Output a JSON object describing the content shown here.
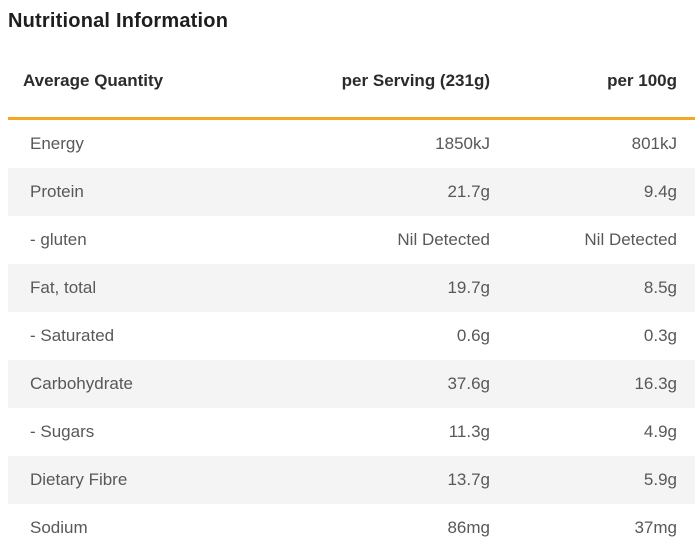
{
  "title": "Nutritional Information",
  "colors": {
    "accent": "#F5A623",
    "stripe": "#F4F4F4",
    "title_text": "#1E1E1E",
    "header_text": "#2B2B2B",
    "body_text": "#57585A"
  },
  "table": {
    "columns": [
      "Average Quantity",
      "per Serving (231g)",
      "per 100g"
    ],
    "rows": [
      {
        "label": "Energy",
        "per_serving": "1850kJ",
        "per_100g": "801kJ"
      },
      {
        "label": "Protein",
        "per_serving": "21.7g",
        "per_100g": "9.4g"
      },
      {
        "label": "- gluten",
        "per_serving": "Nil Detected",
        "per_100g": "Nil Detected"
      },
      {
        "label": "Fat, total",
        "per_serving": "19.7g",
        "per_100g": "8.5g"
      },
      {
        "label": "- Saturated",
        "per_serving": "0.6g",
        "per_100g": "0.3g"
      },
      {
        "label": "Carbohydrate",
        "per_serving": "37.6g",
        "per_100g": "16.3g"
      },
      {
        "label": "- Sugars",
        "per_serving": "11.3g",
        "per_100g": "4.9g"
      },
      {
        "label": "Dietary Fibre",
        "per_serving": "13.7g",
        "per_100g": "5.9g"
      },
      {
        "label": "Sodium",
        "per_serving": "86mg",
        "per_100g": "37mg"
      }
    ]
  }
}
